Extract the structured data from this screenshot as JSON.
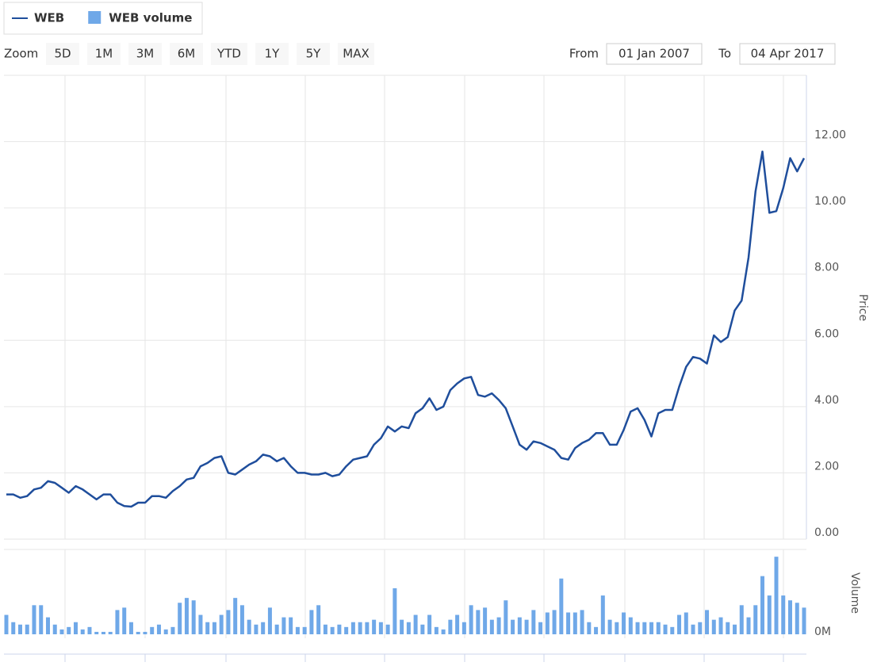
{
  "chart_data": {
    "type": "stock",
    "range_selector": {
      "label": "Zoom",
      "buttons": [
        "5D",
        "1M",
        "3M",
        "6M",
        "YTD",
        "1Y",
        "5Y",
        "MAX"
      ],
      "disabled": [
        "MAX"
      ],
      "from_label": "From",
      "from": "01 Jan 2007",
      "to_label": "To",
      "to": "04 Apr 2017"
    },
    "ylabel": "Price",
    "y2label": "Volume",
    "ylim": [
      0,
      14
    ],
    "yticks": [
      {
        "value": 0,
        "label": "0.00"
      },
      {
        "value": 2,
        "label": "2.00"
      },
      {
        "value": 4,
        "label": "4.00"
      },
      {
        "value": 6,
        "label": "6.00"
      },
      {
        "value": 8,
        "label": "8.00"
      },
      {
        "value": 10,
        "label": "10.00"
      },
      {
        "value": 12,
        "label": "12.00"
      }
    ],
    "y2lim": [
      0,
      3.5
    ],
    "y2ticks": [
      {
        "value": 0,
        "label": "0M"
      }
    ],
    "grid": true,
    "series": [
      {
        "name": "WEB",
        "type": "line",
        "color": "#1f4e9c",
        "values": [
          1.35,
          1.35,
          1.25,
          1.3,
          1.5,
          1.55,
          1.75,
          1.7,
          1.55,
          1.4,
          1.6,
          1.5,
          1.35,
          1.2,
          1.35,
          1.35,
          1.1,
          1.0,
          0.98,
          1.1,
          1.1,
          1.3,
          1.3,
          1.25,
          1.45,
          1.6,
          1.8,
          1.85,
          2.2,
          2.3,
          2.45,
          2.5,
          2.0,
          1.95,
          2.1,
          2.25,
          2.35,
          2.55,
          2.5,
          2.35,
          2.45,
          2.2,
          2.0,
          2.0,
          1.95,
          1.95,
          2.0,
          1.9,
          1.95,
          2.2,
          2.4,
          2.45,
          2.5,
          2.85,
          3.05,
          3.4,
          3.25,
          3.4,
          3.35,
          3.8,
          3.95,
          4.25,
          3.9,
          4.0,
          4.5,
          4.7,
          4.85,
          4.9,
          4.35,
          4.3,
          4.4,
          4.2,
          3.95,
          3.4,
          2.85,
          2.7,
          2.95,
          2.9,
          2.8,
          2.7,
          2.45,
          2.4,
          2.75,
          2.9,
          3.0,
          3.2,
          3.2,
          2.85,
          2.85,
          3.3,
          3.85,
          3.95,
          3.6,
          3.1,
          3.8,
          3.9,
          3.9,
          4.6,
          5.2,
          5.5,
          5.45,
          5.3,
          6.15,
          5.95,
          6.1,
          6.9,
          7.2,
          8.5,
          10.5,
          11.7,
          9.85,
          9.9,
          10.6,
          11.5,
          11.1,
          11.5
        ]
      },
      {
        "name": "WEB volume",
        "type": "column",
        "axis": "y2",
        "color": "#6fa8e8",
        "values": [
          0.8,
          0.5,
          0.4,
          0.4,
          1.2,
          1.2,
          0.7,
          0.4,
          0.2,
          0.3,
          0.5,
          0.2,
          0.3,
          0.1,
          0.1,
          0.1,
          1.0,
          1.1,
          0.5,
          0.1,
          0.1,
          0.3,
          0.4,
          0.2,
          0.3,
          1.3,
          1.5,
          1.4,
          0.8,
          0.5,
          0.5,
          0.8,
          1.0,
          1.5,
          1.2,
          0.6,
          0.4,
          0.5,
          1.1,
          0.4,
          0.7,
          0.7,
          0.3,
          0.3,
          1.0,
          1.2,
          0.4,
          0.3,
          0.4,
          0.3,
          0.5,
          0.5,
          0.5,
          0.6,
          0.5,
          0.4,
          1.9,
          0.6,
          0.5,
          0.8,
          0.4,
          0.8,
          0.3,
          0.2,
          0.6,
          0.8,
          0.5,
          1.2,
          1.0,
          1.1,
          0.6,
          0.7,
          1.4,
          0.6,
          0.7,
          0.6,
          1.0,
          0.5,
          0.9,
          1.0,
          2.3,
          0.9,
          0.9,
          1.0,
          0.5,
          0.3,
          1.6,
          0.6,
          0.5,
          0.9,
          0.7,
          0.5,
          0.5,
          0.5,
          0.5,
          0.4,
          0.3,
          0.8,
          0.9,
          0.4,
          0.5,
          1.0,
          0.6,
          0.7,
          0.5,
          0.4,
          1.2,
          0.7,
          1.2,
          2.4,
          1.6,
          3.2,
          1.6,
          1.4,
          1.3,
          1.1
        ]
      }
    ]
  }
}
